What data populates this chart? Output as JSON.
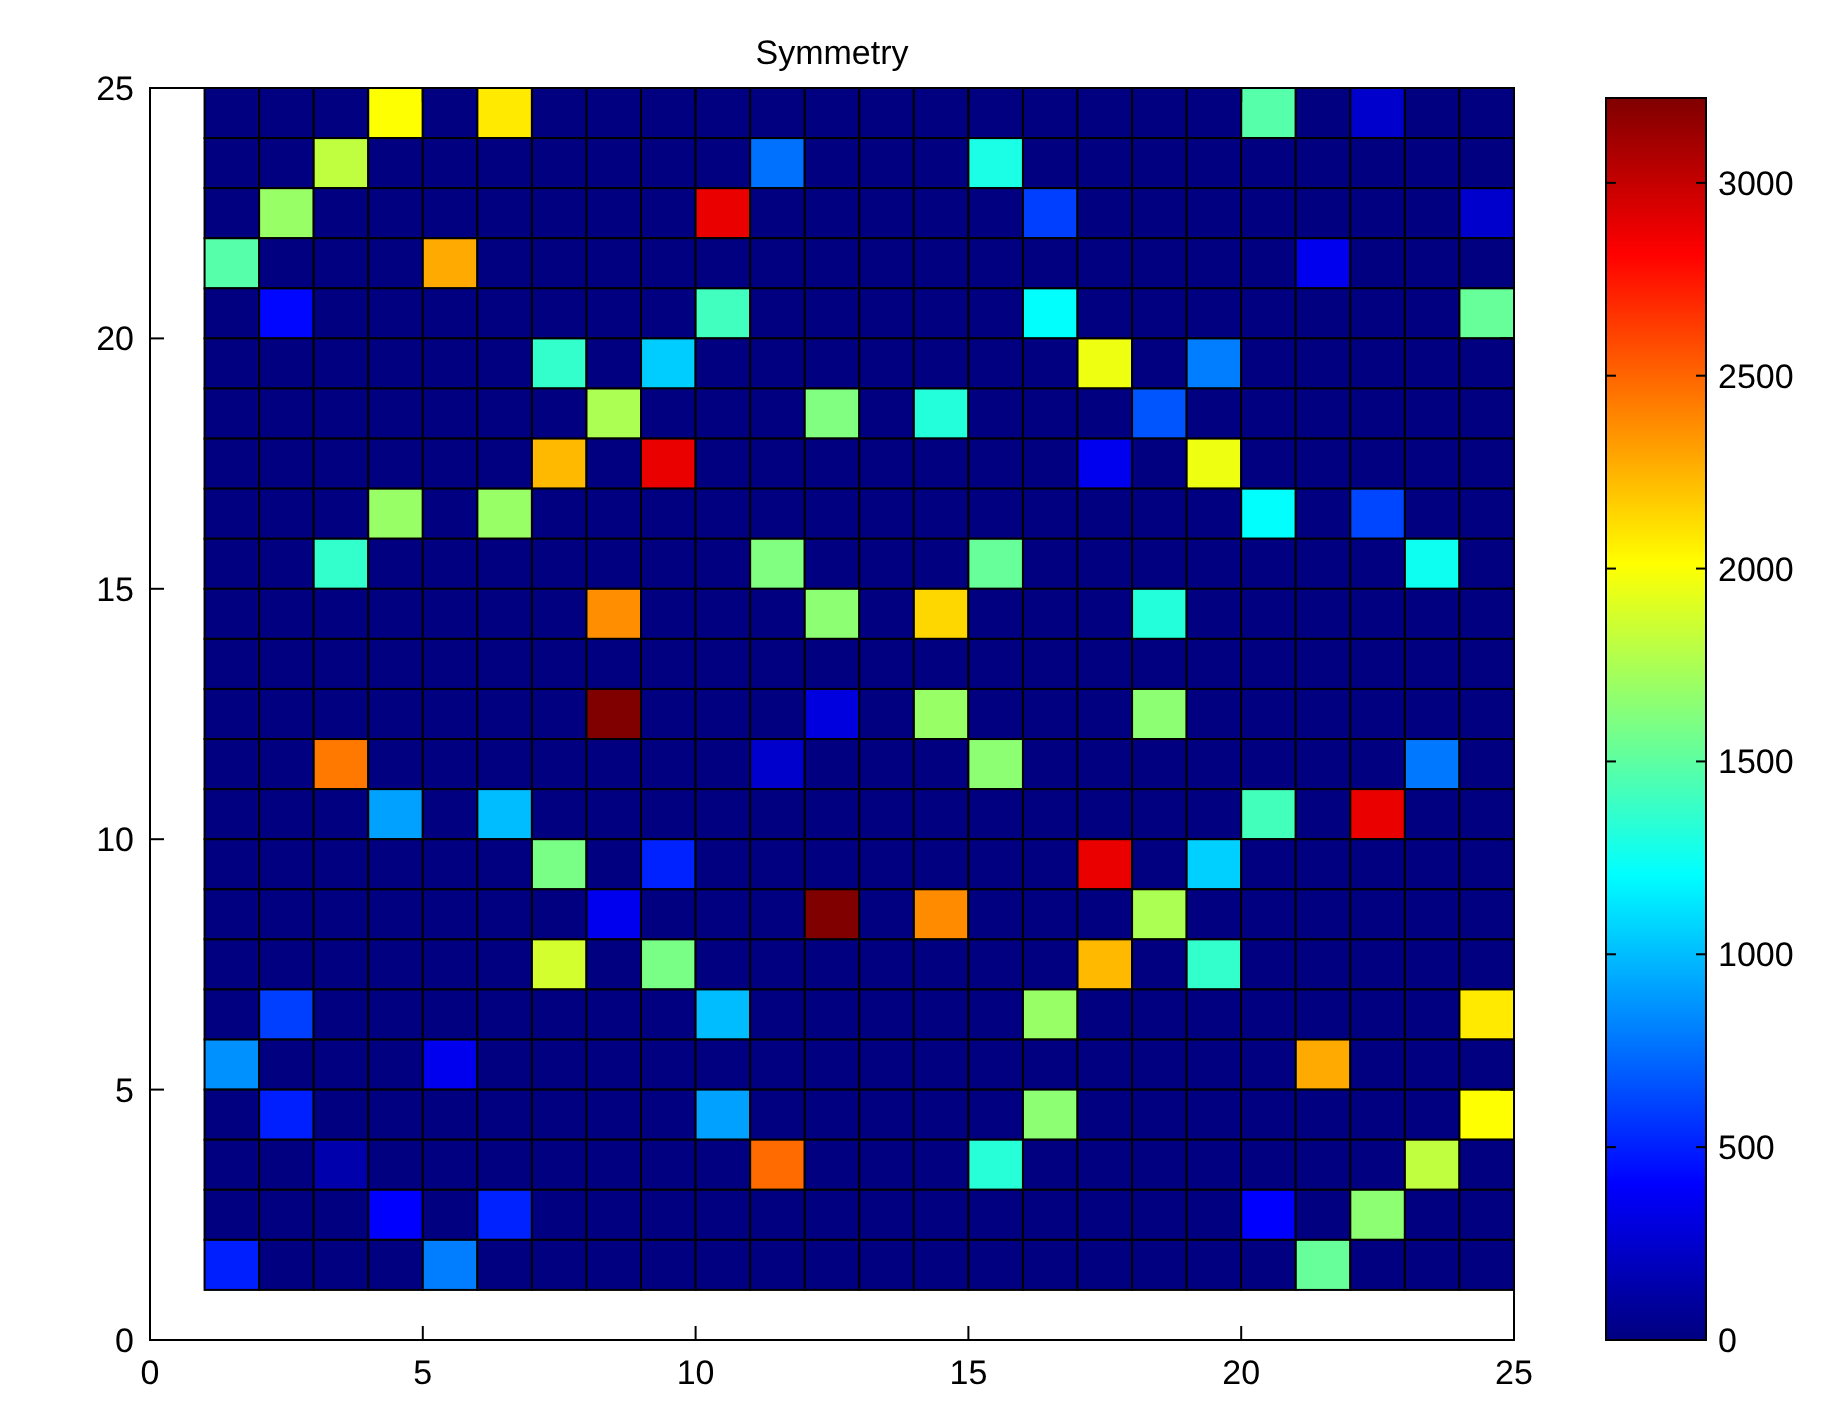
{
  "chart_data": {
    "type": "heatmap",
    "title": "Symmetry",
    "x": [
      1.5,
      2.5,
      3.5,
      4.5,
      5.5,
      6.5,
      7.5,
      8.5,
      9.5,
      10.5,
      11.5,
      12.5,
      13.5,
      14.5,
      15.5,
      16.5,
      17.5,
      18.5,
      19.5,
      20.5,
      21.5,
      22.5,
      23.5,
      24.5
    ],
    "y": [
      24.5,
      23.5,
      22.5,
      21.5,
      20.5,
      19.5,
      18.5,
      17.5,
      16.5,
      15.5,
      14.5,
      13.5,
      12.5,
      11.5,
      10.5,
      9.5,
      8.5,
      7.5,
      6.5,
      5.5,
      4.5,
      3.5,
      2.5,
      1.5
    ],
    "xlim": [
      0,
      25
    ],
    "xticks": [
      0,
      5,
      10,
      15,
      20,
      25
    ],
    "ylim": [
      0,
      25
    ],
    "yticks": [
      0,
      5,
      10,
      15,
      20,
      25
    ],
    "clim": [
      0,
      3220
    ],
    "cticks": [
      0,
      500,
      1000,
      1500,
      2000,
      2500,
      3000
    ],
    "cells": [
      [
        0,
        0,
        0,
        2010,
        0,
        2080,
        0,
        0,
        0,
        0,
        0,
        0,
        0,
        0,
        0,
        0,
        0,
        0,
        0,
        1480,
        0,
        240,
        0,
        0
      ],
      [
        0,
        0,
        1810,
        0,
        0,
        0,
        0,
        0,
        0,
        0,
        760,
        0,
        0,
        0,
        1290,
        0,
        0,
        0,
        0,
        0,
        0,
        0,
        0,
        0
      ],
      [
        0,
        1690,
        0,
        0,
        0,
        0,
        0,
        0,
        0,
        2880,
        0,
        0,
        0,
        0,
        0,
        600,
        0,
        0,
        0,
        0,
        0,
        0,
        0,
        240
      ],
      [
        1480,
        0,
        0,
        0,
        2280,
        0,
        0,
        0,
        0,
        0,
        0,
        0,
        0,
        0,
        0,
        0,
        0,
        0,
        0,
        0,
        350,
        0,
        0,
        0
      ],
      [
        0,
        420,
        0,
        0,
        0,
        0,
        0,
        0,
        0,
        1410,
        0,
        0,
        0,
        0,
        0,
        1210,
        0,
        0,
        0,
        0,
        0,
        0,
        0,
        1530
      ],
      [
        0,
        0,
        0,
        0,
        0,
        0,
        1370,
        0,
        1050,
        0,
        0,
        0,
        0,
        0,
        0,
        0,
        1960,
        0,
        800,
        0,
        0,
        0,
        0,
        0
      ],
      [
        0,
        0,
        0,
        0,
        0,
        0,
        0,
        1750,
        0,
        0,
        0,
        1610,
        0,
        1320,
        0,
        0,
        0,
        670,
        0,
        0,
        0,
        0,
        0,
        0
      ],
      [
        0,
        0,
        0,
        0,
        0,
        0,
        2230,
        0,
        2880,
        0,
        0,
        0,
        0,
        0,
        0,
        0,
        350,
        0,
        1960,
        0,
        0,
        0,
        0,
        0
      ],
      [
        0,
        0,
        0,
        1690,
        0,
        1690,
        0,
        0,
        0,
        0,
        0,
        0,
        0,
        0,
        0,
        0,
        0,
        0,
        0,
        1210,
        0,
        620,
        0,
        0
      ],
      [
        0,
        0,
        1370,
        0,
        0,
        0,
        0,
        0,
        0,
        0,
        1610,
        0,
        0,
        0,
        1530,
        0,
        0,
        0,
        0,
        0,
        0,
        0,
        1250,
        0
      ],
      [
        0,
        0,
        0,
        0,
        0,
        0,
        0,
        2370,
        0,
        0,
        0,
        1650,
        0,
        2140,
        0,
        0,
        0,
        1320,
        0,
        0,
        0,
        0,
        0,
        0
      ],
      [
        0,
        0,
        0,
        0,
        0,
        0,
        0,
        0,
        0,
        0,
        0,
        0,
        0,
        0,
        0,
        0,
        0,
        0,
        0,
        0,
        0,
        0,
        0,
        0
      ],
      [
        0,
        0,
        0,
        0,
        0,
        0,
        0,
        3220,
        0,
        0,
        0,
        300,
        0,
        1690,
        0,
        0,
        0,
        1650,
        0,
        0,
        0,
        0,
        0,
        0
      ],
      [
        0,
        0,
        2440,
        0,
        0,
        0,
        0,
        0,
        0,
        0,
        240,
        0,
        0,
        0,
        1650,
        0,
        0,
        0,
        0,
        0,
        0,
        0,
        780,
        0
      ],
      [
        0,
        0,
        0,
        910,
        0,
        1000,
        0,
        0,
        0,
        0,
        0,
        0,
        0,
        0,
        0,
        0,
        0,
        0,
        0,
        1420,
        0,
        2880,
        0,
        0
      ],
      [
        0,
        0,
        0,
        0,
        0,
        0,
        1590,
        0,
        510,
        0,
        0,
        0,
        0,
        0,
        0,
        0,
        2880,
        0,
        1060,
        0,
        0,
        0,
        0,
        0
      ],
      [
        0,
        0,
        0,
        0,
        0,
        0,
        0,
        350,
        0,
        0,
        0,
        3220,
        0,
        2380,
        0,
        0,
        0,
        1750,
        0,
        0,
        0,
        0,
        0,
        0
      ],
      [
        0,
        0,
        0,
        0,
        0,
        0,
        1870,
        0,
        1590,
        0,
        0,
        0,
        0,
        0,
        0,
        0,
        2230,
        0,
        1370,
        0,
        0,
        0,
        0,
        0
      ],
      [
        0,
        600,
        0,
        0,
        0,
        0,
        0,
        0,
        0,
        1000,
        0,
        0,
        0,
        0,
        0,
        1690,
        0,
        0,
        0,
        0,
        0,
        0,
        0,
        2080
      ],
      [
        860,
        0,
        0,
        0,
        350,
        0,
        0,
        0,
        0,
        0,
        0,
        0,
        0,
        0,
        0,
        0,
        0,
        0,
        0,
        0,
        2280,
        0,
        0,
        0
      ],
      [
        0,
        500,
        0,
        0,
        0,
        0,
        0,
        0,
        0,
        910,
        0,
        0,
        0,
        0,
        0,
        1650,
        0,
        0,
        0,
        0,
        0,
        0,
        0,
        2010
      ],
      [
        0,
        0,
        140,
        0,
        0,
        0,
        0,
        0,
        0,
        0,
        2480,
        0,
        0,
        0,
        1330,
        0,
        0,
        0,
        0,
        0,
        0,
        0,
        1810,
        0
      ],
      [
        0,
        0,
        0,
        400,
        0,
        510,
        0,
        0,
        0,
        0,
        0,
        0,
        0,
        0,
        0,
        0,
        0,
        0,
        0,
        400,
        0,
        1650,
        0,
        0
      ],
      [
        500,
        0,
        0,
        0,
        800,
        0,
        0,
        0,
        0,
        0,
        0,
        0,
        0,
        0,
        0,
        0,
        0,
        0,
        0,
        0,
        1530,
        0,
        0,
        0
      ]
    ]
  }
}
